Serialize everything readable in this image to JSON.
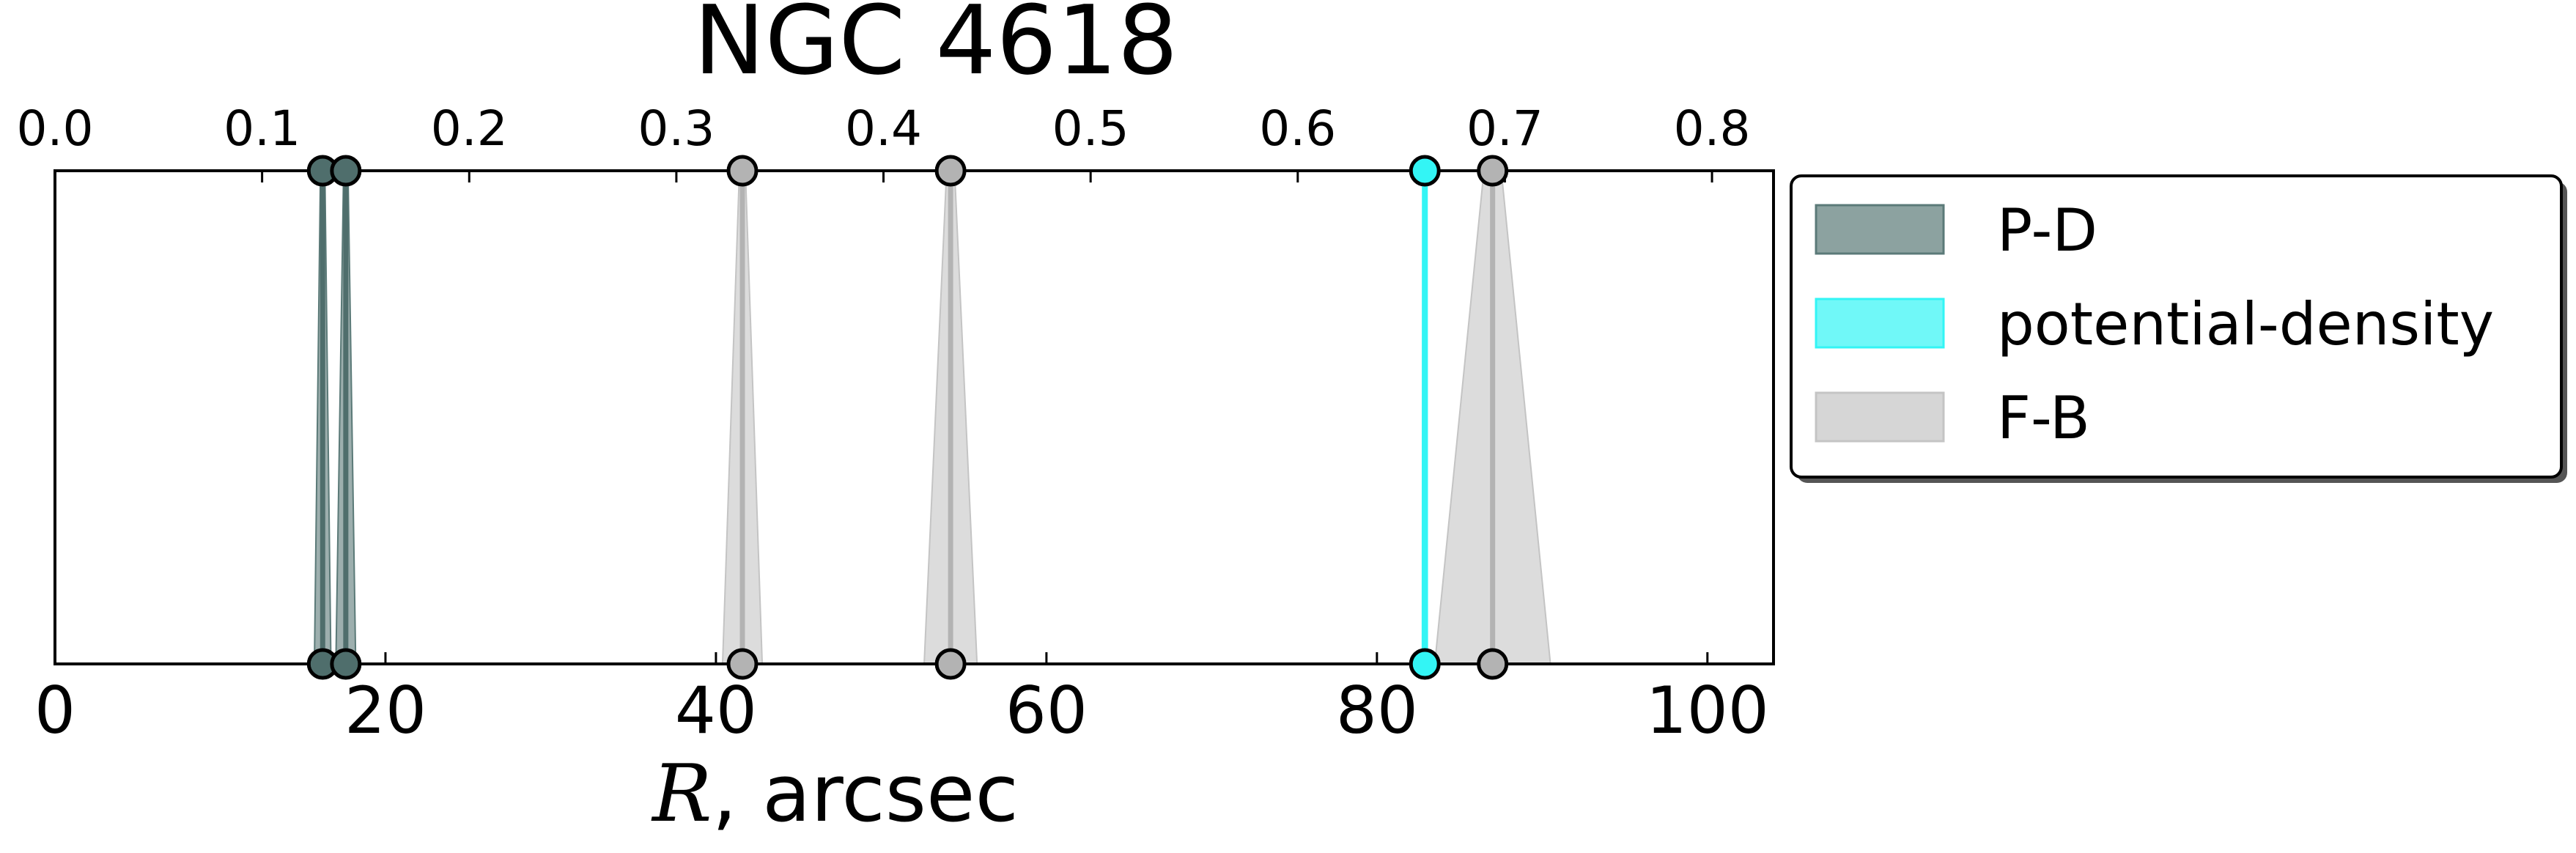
{
  "chart_data": {
    "type": "scatter",
    "title": "NGC 4618",
    "xlabel_italic": "R",
    "xlabel_rest": ", arcsec",
    "xlim": [
      0,
      104
    ],
    "x_ticks": [
      0,
      20,
      40,
      60,
      80,
      100
    ],
    "x_tick_labels": [
      "0",
      "20",
      "40",
      "60",
      "80",
      "100"
    ],
    "top_axis_ticks": [
      0.0,
      0.1,
      0.2,
      0.3,
      0.4,
      0.5,
      0.6,
      0.7,
      0.8
    ],
    "top_axis_tick_labels": [
      "0.0",
      "0.1",
      "0.2",
      "0.3",
      "0.4",
      "0.5",
      "0.6",
      "0.7",
      "0.8"
    ],
    "top_axis_max": 0.8297,
    "grid": false,
    "legend_placement": "outside-right",
    "series": [
      {
        "name": "P-D",
        "color": "#5b7a78",
        "marker_color": "#4f6e6c",
        "points": [
          {
            "x_top": 16.2,
            "x_bottom": 16.2,
            "half_width": 0.5
          },
          {
            "x_top": 17.6,
            "x_bottom": 17.6,
            "half_width": 0.6
          }
        ]
      },
      {
        "name": "potential-density",
        "color": "#33f5f5",
        "marker_color": "#33f5f5",
        "points": [
          {
            "x_top": 82.9,
            "x_bottom": 82.9,
            "half_width": 0.15
          }
        ]
      },
      {
        "name": "F-B",
        "color": "#c4c4c4",
        "marker_color": "#b3b3b3",
        "points": [
          {
            "x_top": 41.6,
            "x_bottom": 41.6,
            "half_width": 1.2
          },
          {
            "x_top": 54.2,
            "x_bottom": 54.2,
            "half_width": 1.6
          },
          {
            "x_top": 87.0,
            "x_bottom": 87.0,
            "half_width": 3.5
          }
        ]
      }
    ]
  }
}
